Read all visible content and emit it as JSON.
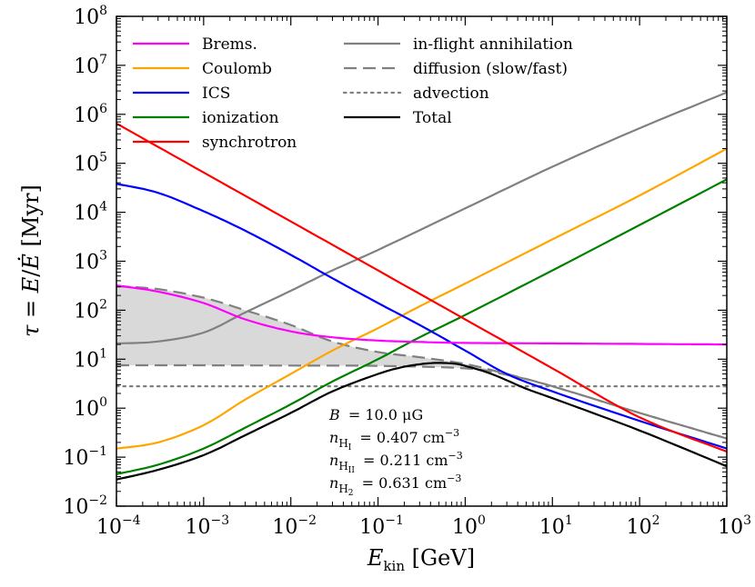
{
  "chart_data": {
    "type": "line",
    "xscale": "log",
    "yscale": "log",
    "xlim": [
      0.0001,
      1000
    ],
    "ylim": [
      0.01,
      100000000
    ],
    "xlabel": "E_kin [GeV]",
    "ylabel": "τ = E/Ė [Myr]",
    "xticks": [
      {
        "base": "10",
        "exp": "−4"
      },
      {
        "base": "10",
        "exp": "−3"
      },
      {
        "base": "10",
        "exp": "−2"
      },
      {
        "base": "10",
        "exp": "−1"
      },
      {
        "base": "10",
        "exp": "0"
      },
      {
        "base": "10",
        "exp": "1"
      },
      {
        "base": "10",
        "exp": "2"
      },
      {
        "base": "10",
        "exp": "3"
      }
    ],
    "yticks": [
      {
        "base": "10",
        "exp": "−2"
      },
      {
        "base": "10",
        "exp": "−1"
      },
      {
        "base": "10",
        "exp": "0"
      },
      {
        "base": "10",
        "exp": "1"
      },
      {
        "base": "10",
        "exp": "2"
      },
      {
        "base": "10",
        "exp": "3"
      },
      {
        "base": "10",
        "exp": "4"
      },
      {
        "base": "10",
        "exp": "5"
      },
      {
        "base": "10",
        "exp": "6"
      },
      {
        "base": "10",
        "exp": "7"
      },
      {
        "base": "10",
        "exp": "8"
      }
    ],
    "series": [
      {
        "name": "Brems.",
        "color": "#ff00ff",
        "style": "solid",
        "x": [
          0.0001,
          0.0003,
          0.001,
          0.003,
          0.01,
          0.03,
          0.1,
          0.3,
          1,
          10,
          100,
          1000
        ],
        "y": [
          320,
          240,
          140,
          65,
          37,
          28,
          24,
          22.5,
          21.5,
          21,
          20.5,
          20
        ]
      },
      {
        "name": "Coulomb",
        "color": "#ffa500",
        "style": "solid",
        "x": [
          0.0001,
          0.0003,
          0.001,
          0.003,
          0.01,
          0.03,
          0.1,
          0.3,
          1,
          10,
          100,
          1000
        ],
        "y": [
          0.15,
          0.2,
          0.45,
          1.5,
          5,
          15,
          43,
          120,
          350,
          2800,
          22000,
          200000
        ]
      },
      {
        "name": "ICS",
        "color": "#0000ff",
        "style": "solid",
        "x": [
          0.0001,
          0.0003,
          0.001,
          0.003,
          0.01,
          0.03,
          0.1,
          0.3,
          1,
          3,
          10,
          100,
          1000
        ],
        "y": [
          38000,
          25000,
          10500,
          4200,
          1350,
          450,
          140,
          50,
          15,
          5,
          2.2,
          0.55,
          0.15
        ]
      },
      {
        "name": "ionization",
        "color": "#008000",
        "style": "solid",
        "x": [
          0.0001,
          0.0003,
          0.001,
          0.003,
          0.01,
          0.03,
          0.1,
          0.3,
          1,
          10,
          100,
          1000
        ],
        "y": [
          0.045,
          0.07,
          0.15,
          0.4,
          1.2,
          3.5,
          10,
          28,
          80,
          650,
          5500,
          47000
        ]
      },
      {
        "name": "synchrotron",
        "color": "#ff0000",
        "style": "solid",
        "x": [
          0.0001,
          0.001,
          0.01,
          0.1,
          1,
          10,
          100,
          1000
        ],
        "y": [
          650000,
          65000,
          6500,
          650,
          65,
          6.5,
          0.65,
          0.13
        ]
      },
      {
        "name": "in-flight annihilation",
        "color": "#808080",
        "style": "solid",
        "x": [
          0.0001,
          0.0003,
          0.001,
          0.003,
          0.01,
          0.03,
          0.1,
          1,
          10,
          100,
          1000
        ],
        "y": [
          21,
          23,
          35,
          90,
          250,
          650,
          1700,
          12000,
          85000,
          520000,
          2800000
        ]
      },
      {
        "name": "diffusion (slow/fast)",
        "color": "#808080",
        "style": "dashed",
        "x": [
          0.0001,
          0.0003,
          0.001,
          0.003,
          0.01,
          0.03,
          0.1,
          0.3,
          1,
          3,
          10,
          100,
          1000
        ],
        "y": [
          310,
          270,
          180,
          100,
          50,
          23,
          14,
          11,
          8,
          5,
          2.8,
          0.8,
          0.24
        ]
      },
      {
        "name": "diffusion (fast)",
        "color": "#808080",
        "style": "dashed",
        "legend": false,
        "x": [
          0.0001,
          0.001,
          0.01,
          0.1,
          1,
          3,
          10,
          100,
          1000
        ],
        "y": [
          7.5,
          7.5,
          7.4,
          7.3,
          6.5,
          4.8,
          2.8,
          0.8,
          0.24
        ]
      },
      {
        "name": "advection",
        "color": "#808080",
        "style": "dotted",
        "x": [
          0.0001,
          1000
        ],
        "y": [
          2.8,
          2.8
        ]
      },
      {
        "name": "Total",
        "color": "#000000",
        "style": "solid",
        "x": [
          0.0001,
          0.0003,
          0.001,
          0.003,
          0.01,
          0.03,
          0.1,
          0.2,
          0.4,
          0.7,
          1,
          2,
          5,
          10,
          100,
          1000
        ],
        "y": [
          0.035,
          0.055,
          0.11,
          0.28,
          0.8,
          2.2,
          5,
          7,
          8.3,
          8.2,
          7.3,
          5,
          2.5,
          1.6,
          0.35,
          0.065
        ]
      }
    ],
    "annotations": [
      {
        "var": "B",
        "sub": "",
        "value": "= 10.0 μG"
      },
      {
        "var": "n",
        "sub": "H",
        "subsub": "I",
        "value": "= 0.407 cm",
        "sup": "−3"
      },
      {
        "var": "n",
        "sub": "H",
        "subsub": "II",
        "value": "= 0.211 cm",
        "sup": "−3"
      },
      {
        "var": "n",
        "sub": "H",
        "subsub": "2",
        "value": "= 0.631 cm",
        "sup": "−3"
      }
    ],
    "legend_position": "top"
  }
}
